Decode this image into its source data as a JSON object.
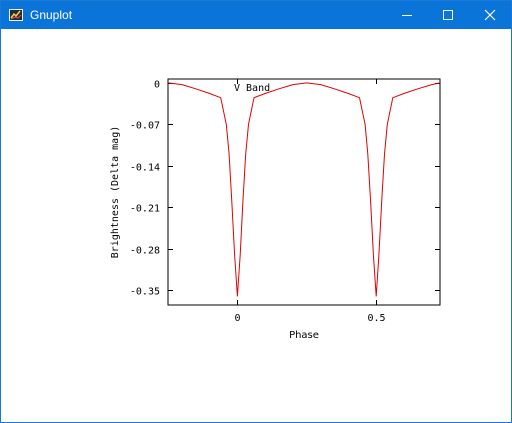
{
  "window": {
    "title": "Gnuplot",
    "app_icon": "gnuplot-app-icon",
    "controls": {
      "minimize_icon": "minimize-icon",
      "maximize_icon": "maximize-icon",
      "close_icon": "close-icon"
    }
  },
  "colors": {
    "titlebar": "#0a74d8",
    "curve": "#e00000"
  },
  "chart_data": {
    "type": "line",
    "title": "V Band",
    "xlabel": "Phase",
    "ylabel": "Brightness (Delta mag)",
    "xlim": [
      -0.25,
      0.73
    ],
    "ylim": [
      -0.3745,
      0.0065
    ],
    "x_ticks": [
      0,
      0.5
    ],
    "x_tick_labels": [
      "0",
      "0.5"
    ],
    "y_ticks": [
      0,
      -0.07,
      -0.14,
      -0.21,
      -0.28,
      -0.35
    ],
    "y_tick_labels": [
      "0",
      "-0.07",
      "-0.14",
      "-0.21",
      "-0.28",
      "-0.35"
    ],
    "grid": false,
    "series": [
      {
        "color": "#e00000",
        "x": [
          -0.25,
          -0.2,
          -0.15,
          -0.1,
          -0.06,
          -0.04,
          -0.03,
          -0.02,
          -0.01,
          0.0,
          0.01,
          0.02,
          0.03,
          0.04,
          0.06,
          0.1,
          0.15,
          0.2,
          0.25,
          0.3,
          0.35,
          0.4,
          0.44,
          0.46,
          0.47,
          0.48,
          0.49,
          0.5,
          0.51,
          0.52,
          0.53,
          0.54,
          0.56,
          0.6,
          0.65,
          0.7,
          0.73
        ],
        "y": [
          0.0,
          -0.003,
          -0.01,
          -0.018,
          -0.025,
          -0.07,
          -0.12,
          -0.2,
          -0.29,
          -0.36,
          -0.29,
          -0.2,
          -0.12,
          -0.07,
          -0.025,
          -0.018,
          -0.01,
          -0.003,
          0.0,
          -0.003,
          -0.01,
          -0.018,
          -0.025,
          -0.07,
          -0.12,
          -0.2,
          -0.29,
          -0.36,
          -0.29,
          -0.2,
          -0.12,
          -0.07,
          -0.025,
          -0.018,
          -0.01,
          -0.003,
          0.0
        ]
      }
    ]
  }
}
